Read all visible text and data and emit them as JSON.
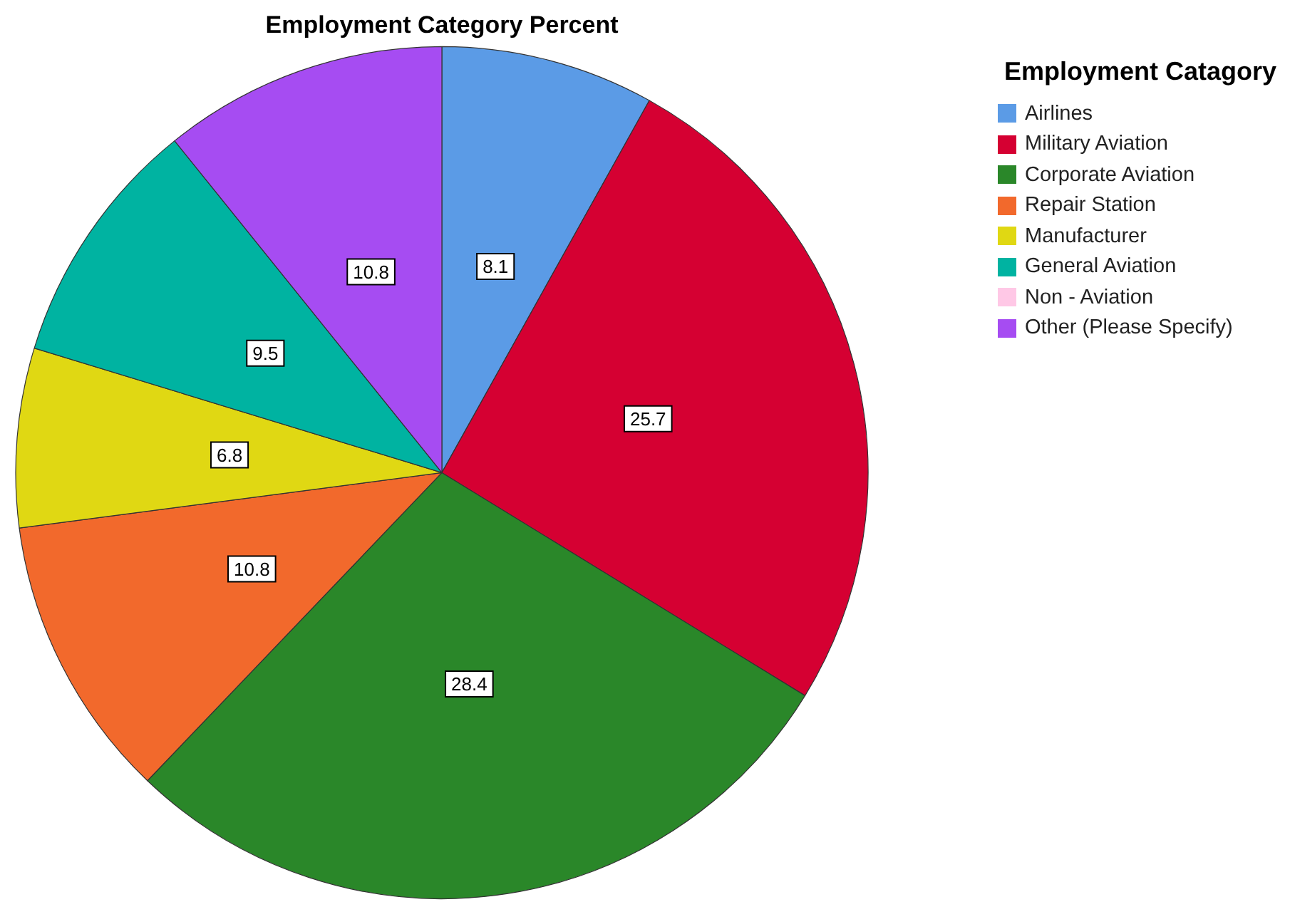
{
  "chart_data": {
    "type": "pie",
    "title": "Employment Category Percent",
    "legend_title": "Employment Catagory",
    "legend": "right",
    "categories": [
      "Airlines",
      "Military Aviation",
      "Corporate Aviation",
      "Repair Station",
      "Manufacturer",
      "General Aviation",
      "Non - Aviation",
      "Other (Please Specify)"
    ],
    "values": [
      8.1,
      25.7,
      28.4,
      10.8,
      6.8,
      9.5,
      0,
      10.8
    ],
    "value_labels": [
      "8.1",
      "25.7",
      "28.4",
      "10.8",
      "6.8",
      "9.5",
      null,
      "10.8"
    ],
    "colors": [
      "#5b9be6",
      "#d50032",
      "#2a8729",
      "#f2692c",
      "#e0d813",
      "#00b3a1",
      "#ffc8e6",
      "#a64cf2"
    ]
  }
}
